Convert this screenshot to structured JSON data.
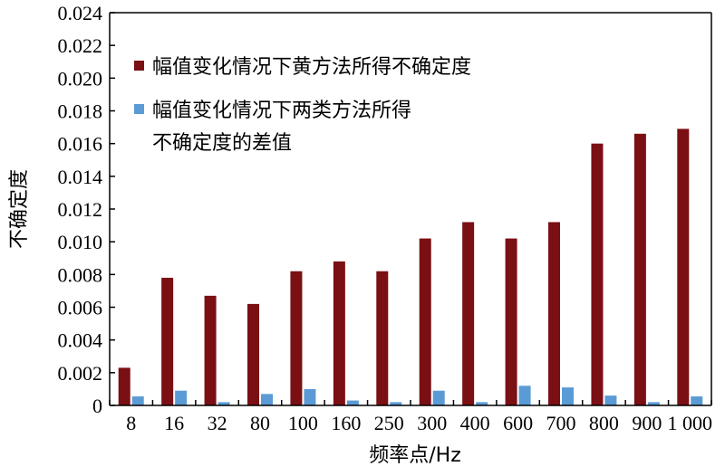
{
  "chart_data": {
    "type": "bar",
    "xlabel": "频率点/Hz",
    "ylabel": "不确定度",
    "ylim": [
      0,
      0.024
    ],
    "yticks": [
      "0",
      "0.002",
      "0.004",
      "0.006",
      "0.008",
      "0.010",
      "0.012",
      "0.014",
      "0.016",
      "0.018",
      "0.020",
      "0.022",
      "0.024"
    ],
    "categories": [
      "8",
      "16",
      "32",
      "80",
      "100",
      "160",
      "250",
      "300",
      "400",
      "600",
      "700",
      "800",
      "900",
      "1 000"
    ],
    "grid": false,
    "legend_position": "top-left",
    "series": [
      {
        "name": "幅值变化情况下黄方法所得不确定度",
        "color": "#7a0f14",
        "values": [
          0.0023,
          0.0078,
          0.0067,
          0.0062,
          0.0082,
          0.0088,
          0.0082,
          0.0102,
          0.0112,
          0.0102,
          0.0112,
          0.016,
          0.0166,
          0.0169
        ]
      },
      {
        "name": "幅值变化情况下两类方法所得不确定度的差值",
        "legend_lines": [
          "幅值变化情况下两类方法所得",
          "不确定度的差值"
        ],
        "color": "#5b9bd5",
        "values": [
          0.00055,
          0.0009,
          0.0002,
          0.0007,
          0.001,
          0.0003,
          0.0002,
          0.0009,
          0.0002,
          0.0012,
          0.0011,
          0.0006,
          0.0002,
          0.00055
        ]
      }
    ]
  }
}
